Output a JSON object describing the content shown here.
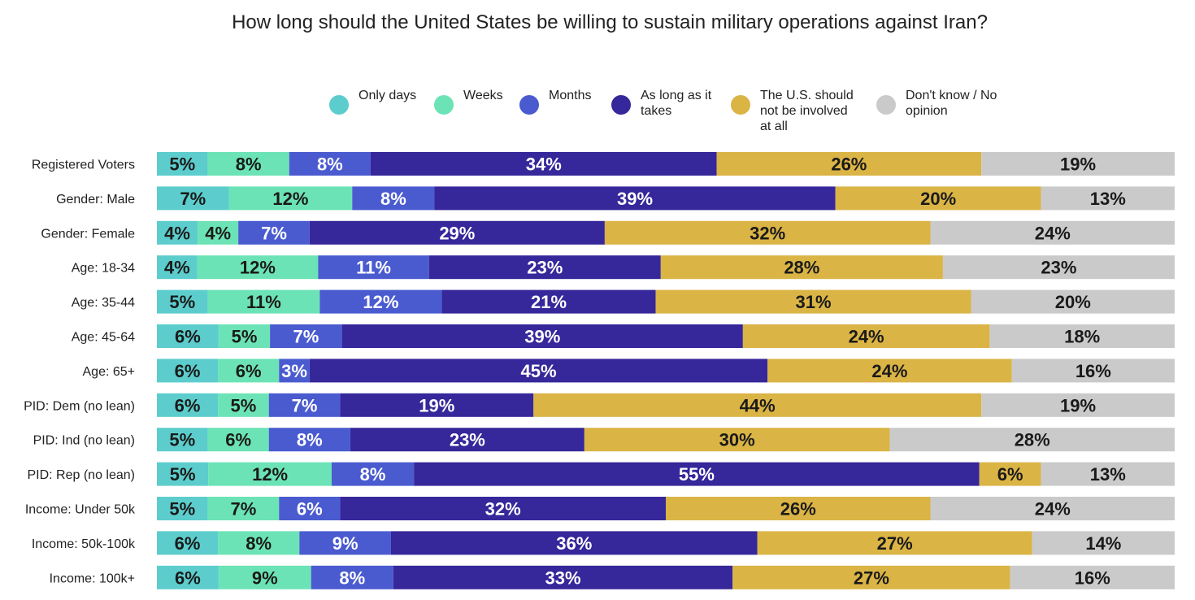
{
  "chart_data": {
    "type": "bar",
    "orientation": "horizontal",
    "stacked": true,
    "title": "How long should the United States be willing to sustain military operations against Iran?",
    "xlabel": "",
    "ylabel": "",
    "legend_position": "top",
    "grid": false,
    "categories": [
      "Registered Voters",
      "Gender: Male",
      "Gender: Female",
      "Age: 18-34",
      "Age: 35-44",
      "Age: 45-64",
      "Age: 65+",
      "PID: Dem (no lean)",
      "PID: Ind (no lean)",
      "PID: Rep (no lean)",
      "Income: Under 50k",
      "Income: 50k-100k",
      "Income: 100k+"
    ],
    "series": [
      {
        "name": "Only days",
        "legend_lines": [
          "Only days"
        ],
        "color": "#5ccdcc",
        "label_color": "#1a1a1a",
        "values": [
          5,
          7,
          4,
          4,
          5,
          6,
          6,
          6,
          5,
          5,
          5,
          6,
          6
        ]
      },
      {
        "name": "Weeks",
        "legend_lines": [
          "Weeks"
        ],
        "color": "#6ce3b6",
        "label_color": "#1a1a1a",
        "values": [
          8,
          12,
          4,
          12,
          11,
          5,
          6,
          5,
          6,
          12,
          7,
          8,
          9
        ]
      },
      {
        "name": "Months",
        "legend_lines": [
          "Months"
        ],
        "color": "#4a5bd0",
        "label_color": "#ffffff",
        "values": [
          8,
          8,
          7,
          11,
          12,
          7,
          3,
          7,
          8,
          8,
          6,
          9,
          8
        ]
      },
      {
        "name": "As long as it takes",
        "legend_lines": [
          "As long as it",
          "takes"
        ],
        "color": "#36279a",
        "label_color": "#ffffff",
        "values": [
          34,
          39,
          29,
          23,
          21,
          39,
          45,
          19,
          23,
          55,
          32,
          36,
          33
        ]
      },
      {
        "name": "The U.S. should not be involved at all",
        "legend_lines": [
          "The U.S. should",
          "not be involved",
          "at all"
        ],
        "color": "#dab445",
        "label_color": "#1a1a1a",
        "values": [
          26,
          20,
          32,
          28,
          31,
          24,
          24,
          44,
          30,
          6,
          26,
          27,
          27
        ]
      },
      {
        "name": "Don't know / No opinion",
        "legend_lines": [
          "Don't know / No",
          "opinion"
        ],
        "color": "#cacaca",
        "label_color": "#1a1a1a",
        "values": [
          19,
          13,
          24,
          23,
          20,
          18,
          16,
          19,
          28,
          13,
          24,
          14,
          16
        ]
      }
    ],
    "value_suffix": "%"
  }
}
